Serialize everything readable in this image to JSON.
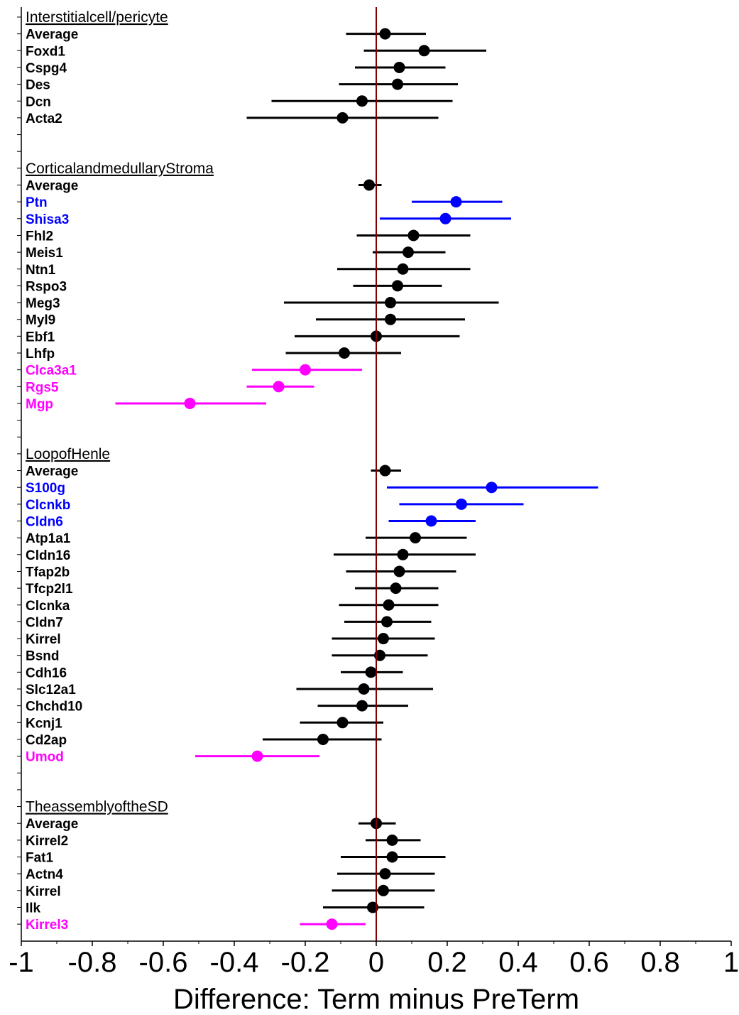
{
  "colors": {
    "black": "#000000",
    "up": "#0000ff",
    "down": "#ff00ff",
    "zero_line": "#800000"
  },
  "chart_data": {
    "type": "forest",
    "xlabel": "Difference: Term minus PreTerm",
    "xlim": [
      -1,
      1
    ],
    "xticks": [
      -1,
      -0.8,
      -0.6,
      -0.4,
      -0.2,
      0,
      0.2,
      0.4,
      0.6,
      0.8,
      1
    ],
    "xtick_labels": [
      "-1",
      "-0.8",
      "-0.6",
      "-0.4",
      "-0.2",
      "0",
      "0.2",
      "0.4",
      "0.6",
      "0.8",
      "1"
    ],
    "zero_line": 0,
    "groups": [
      {
        "title": "Interstitialcell/pericyte",
        "rows": [
          {
            "label": "Average",
            "est": 0.025,
            "lo": -0.085,
            "hi": 0.14,
            "dir": "ns"
          },
          {
            "label": "Foxd1",
            "est": 0.135,
            "lo": -0.035,
            "hi": 0.31,
            "dir": "ns"
          },
          {
            "label": "Cspg4",
            "est": 0.065,
            "lo": -0.06,
            "hi": 0.195,
            "dir": "ns"
          },
          {
            "label": "Des",
            "est": 0.06,
            "lo": -0.105,
            "hi": 0.23,
            "dir": "ns"
          },
          {
            "label": "Dcn",
            "est": -0.04,
            "lo": -0.295,
            "hi": 0.215,
            "dir": "ns"
          },
          {
            "label": "Acta2",
            "est": -0.095,
            "lo": -0.365,
            "hi": 0.175,
            "dir": "ns"
          }
        ]
      },
      {
        "title": "CorticalandmedullaryStroma",
        "rows": [
          {
            "label": "Average",
            "est": -0.02,
            "lo": -0.05,
            "hi": 0.015,
            "dir": "ns"
          },
          {
            "label": "Ptn",
            "est": 0.225,
            "lo": 0.1,
            "hi": 0.355,
            "dir": "up"
          },
          {
            "label": "Shisa3",
            "est": 0.195,
            "lo": 0.01,
            "hi": 0.38,
            "dir": "up"
          },
          {
            "label": "Fhl2",
            "est": 0.105,
            "lo": -0.055,
            "hi": 0.265,
            "dir": "ns"
          },
          {
            "label": "Meis1",
            "est": 0.09,
            "lo": -0.01,
            "hi": 0.195,
            "dir": "ns"
          },
          {
            "label": "Ntn1",
            "est": 0.075,
            "lo": -0.11,
            "hi": 0.265,
            "dir": "ns"
          },
          {
            "label": "Rspo3",
            "est": 0.06,
            "lo": -0.065,
            "hi": 0.185,
            "dir": "ns"
          },
          {
            "label": "Meg3",
            "est": 0.04,
            "lo": -0.26,
            "hi": 0.345,
            "dir": "ns"
          },
          {
            "label": "Myl9",
            "est": 0.04,
            "lo": -0.17,
            "hi": 0.25,
            "dir": "ns"
          },
          {
            "label": "Ebf1",
            "est": 0.0,
            "lo": -0.23,
            "hi": 0.235,
            "dir": "ns"
          },
          {
            "label": "Lhfp",
            "est": -0.09,
            "lo": -0.255,
            "hi": 0.07,
            "dir": "ns"
          },
          {
            "label": "Clca3a1",
            "est": -0.2,
            "lo": -0.35,
            "hi": -0.04,
            "dir": "down"
          },
          {
            "label": "Rgs5",
            "est": -0.275,
            "lo": -0.365,
            "hi": -0.175,
            "dir": "down"
          },
          {
            "label": "Mgp",
            "est": -0.525,
            "lo": -0.735,
            "hi": -0.31,
            "dir": "down"
          }
        ]
      },
      {
        "title": "LoopofHenle",
        "rows": [
          {
            "label": "Average",
            "est": 0.025,
            "lo": -0.015,
            "hi": 0.07,
            "dir": "ns"
          },
          {
            "label": "S100g",
            "est": 0.325,
            "lo": 0.03,
            "hi": 0.625,
            "dir": "up"
          },
          {
            "label": "Clcnkb",
            "est": 0.24,
            "lo": 0.065,
            "hi": 0.415,
            "dir": "up"
          },
          {
            "label": "Cldn6",
            "est": 0.155,
            "lo": 0.035,
            "hi": 0.28,
            "dir": "up"
          },
          {
            "label": "Atp1a1",
            "est": 0.11,
            "lo": -0.03,
            "hi": 0.255,
            "dir": "ns"
          },
          {
            "label": "Cldn16",
            "est": 0.075,
            "lo": -0.12,
            "hi": 0.28,
            "dir": "ns"
          },
          {
            "label": "Tfap2b",
            "est": 0.065,
            "lo": -0.085,
            "hi": 0.225,
            "dir": "ns"
          },
          {
            "label": "Tfcp2l1",
            "est": 0.055,
            "lo": -0.06,
            "hi": 0.175,
            "dir": "ns"
          },
          {
            "label": "Clcnka",
            "est": 0.035,
            "lo": -0.105,
            "hi": 0.175,
            "dir": "ns"
          },
          {
            "label": "Cldn7",
            "est": 0.03,
            "lo": -0.09,
            "hi": 0.155,
            "dir": "ns"
          },
          {
            "label": "Kirrel",
            "est": 0.02,
            "lo": -0.125,
            "hi": 0.165,
            "dir": "ns"
          },
          {
            "label": "Bsnd",
            "est": 0.01,
            "lo": -0.125,
            "hi": 0.145,
            "dir": "ns"
          },
          {
            "label": "Cdh16",
            "est": -0.015,
            "lo": -0.1,
            "hi": 0.075,
            "dir": "ns"
          },
          {
            "label": "Slc12a1",
            "est": -0.035,
            "lo": -0.225,
            "hi": 0.16,
            "dir": "ns"
          },
          {
            "label": "Chchd10",
            "est": -0.04,
            "lo": -0.165,
            "hi": 0.09,
            "dir": "ns"
          },
          {
            "label": "Kcnj1",
            "est": -0.095,
            "lo": -0.215,
            "hi": 0.02,
            "dir": "ns"
          },
          {
            "label": "Cd2ap",
            "est": -0.15,
            "lo": -0.32,
            "hi": 0.015,
            "dir": "ns"
          },
          {
            "label": "Umod",
            "est": -0.335,
            "lo": -0.51,
            "hi": -0.16,
            "dir": "down"
          }
        ]
      },
      {
        "title": "TheassemblyoftheSD",
        "rows": [
          {
            "label": "Average",
            "est": 0.0,
            "lo": -0.05,
            "hi": 0.055,
            "dir": "ns"
          },
          {
            "label": "Kirrel2",
            "est": 0.045,
            "lo": -0.03,
            "hi": 0.125,
            "dir": "ns"
          },
          {
            "label": "Fat1",
            "est": 0.045,
            "lo": -0.1,
            "hi": 0.195,
            "dir": "ns"
          },
          {
            "label": "Actn4",
            "est": 0.025,
            "lo": -0.11,
            "hi": 0.165,
            "dir": "ns"
          },
          {
            "label": "Kirrel",
            "est": 0.02,
            "lo": -0.125,
            "hi": 0.165,
            "dir": "ns"
          },
          {
            "label": "Ilk",
            "est": -0.01,
            "lo": -0.15,
            "hi": 0.135,
            "dir": "ns"
          },
          {
            "label": "Kirrel3",
            "est": -0.125,
            "lo": -0.215,
            "hi": -0.03,
            "dir": "down"
          }
        ]
      }
    ]
  }
}
